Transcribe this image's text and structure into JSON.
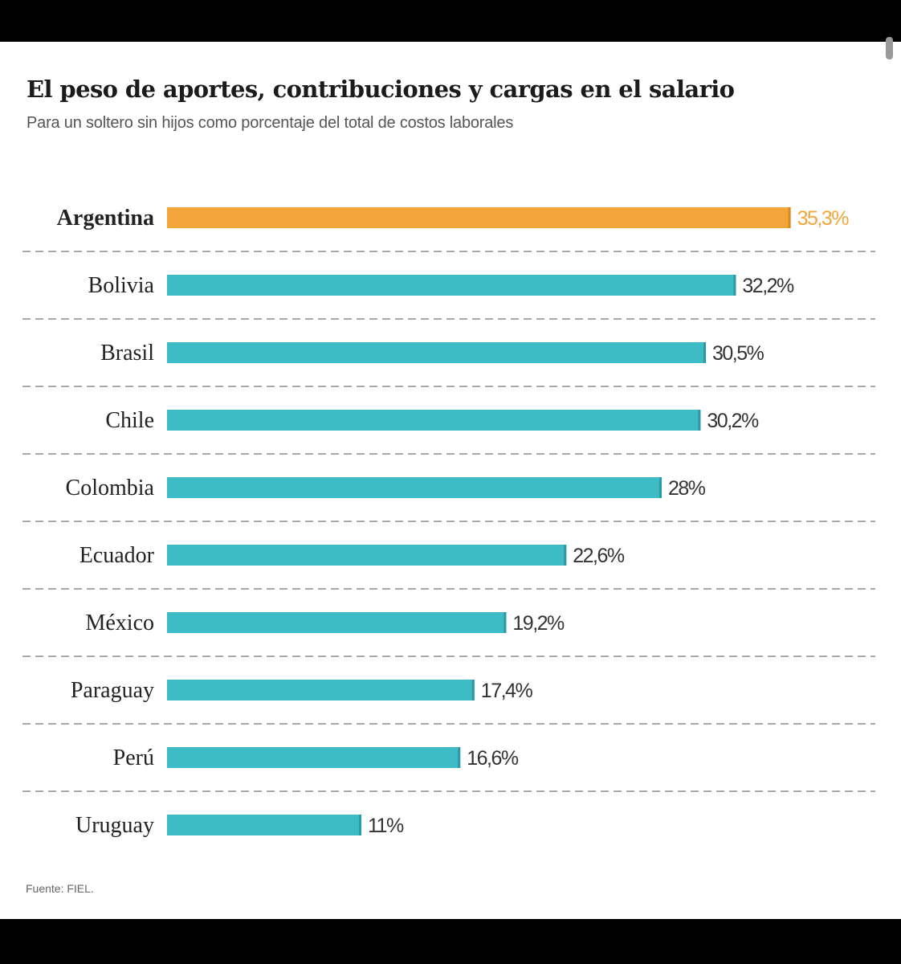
{
  "chart_data": {
    "type": "bar",
    "orientation": "horizontal",
    "title": "El peso de aportes, contribuciones y cargas en el salario",
    "subtitle": "Para un soltero sin hijos como porcentaje del total de costos laborales",
    "categories": [
      "Argentina",
      "Bolivia",
      "Brasil",
      "Chile",
      "Colombia",
      "Ecuador",
      "México",
      "Paraguay",
      "Perú",
      "Uruguay"
    ],
    "values": [
      35.3,
      32.2,
      30.5,
      30.2,
      28,
      22.6,
      19.2,
      17.4,
      16.6,
      11
    ],
    "value_labels": [
      "35,3%",
      "32,2%",
      "30,5%",
      "30,2%",
      "28%",
      "22,6%",
      "19,2%",
      "17,4%",
      "16,6%",
      "11%"
    ],
    "highlight": "Argentina",
    "colors": {
      "highlight": "#f2a53a",
      "default": "#3dbcc6",
      "separator": "#8a8a8a",
      "text": "#222222"
    },
    "source": "Fuente: FIEL.",
    "grid": false
  }
}
